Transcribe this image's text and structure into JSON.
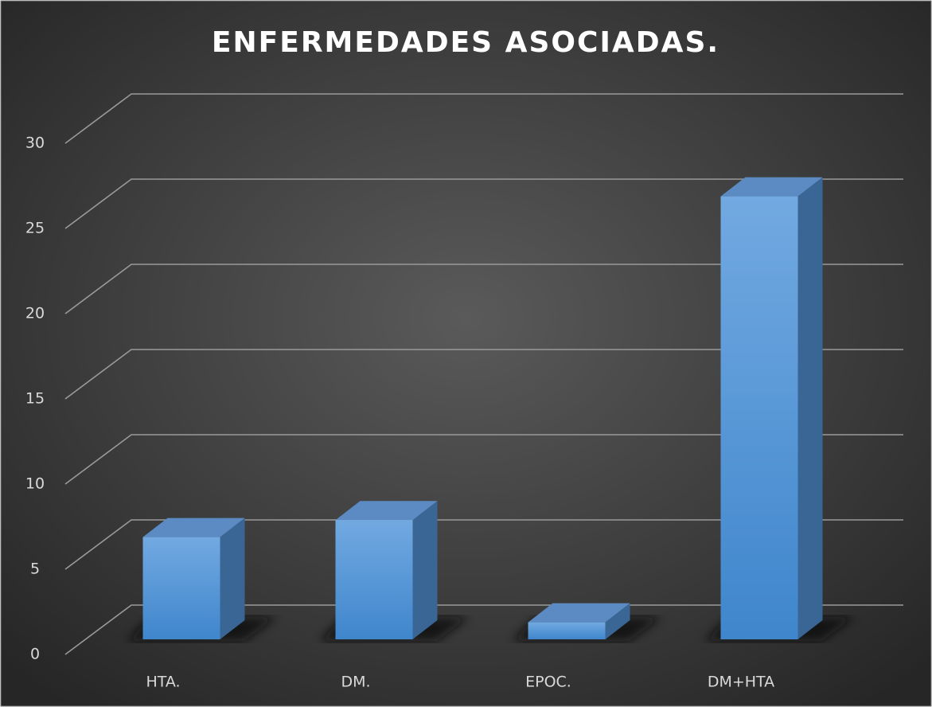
{
  "chart_data": {
    "type": "bar3d",
    "title": "ENFERMEDADES ASOCIADAS.",
    "categories": [
      "HTA.",
      "DM.",
      "EPOC.",
      "DM+HTA"
    ],
    "values": [
      6,
      7,
      1,
      26
    ],
    "color": "#5b9bd5",
    "ylim": [
      0,
      30
    ],
    "yticks": [
      0,
      5,
      10,
      15,
      20,
      25,
      30
    ],
    "grid": true
  }
}
